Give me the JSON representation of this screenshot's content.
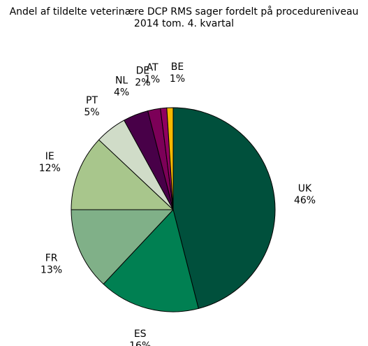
{
  "chart_data": {
    "type": "pie",
    "title": "Andel af tildelte veterinære DCP RMS sager fordelt på procedureniveau",
    "subtitle": "2014 tom. 4. kvartal",
    "start_angle_deg": 0,
    "direction": "clockwise",
    "slices": [
      {
        "label": "UK",
        "pct_label": "46%",
        "value": 46,
        "color": "#00503c"
      },
      {
        "label": "ES",
        "pct_label": "16%",
        "value": 16,
        "color": "#008052"
      },
      {
        "label": "FR",
        "pct_label": "13%",
        "value": 13,
        "color": "#80b088"
      },
      {
        "label": "IE",
        "pct_label": "12%",
        "value": 12,
        "color": "#a8c68c"
      },
      {
        "label": "PT",
        "pct_label": "5%",
        "value": 5,
        "color": "#d0dcc8"
      },
      {
        "label": "NL",
        "pct_label": "4%",
        "value": 4,
        "color": "#480048"
      },
      {
        "label": "DE",
        "pct_label": "2%",
        "value": 2,
        "color": "#7c0058"
      },
      {
        "label": "AT",
        "pct_label": "1%",
        "value": 1,
        "color": "#900060"
      },
      {
        "label": "BE",
        "pct_label": "1%",
        "value": 1,
        "color": "#f8b800"
      }
    ]
  }
}
